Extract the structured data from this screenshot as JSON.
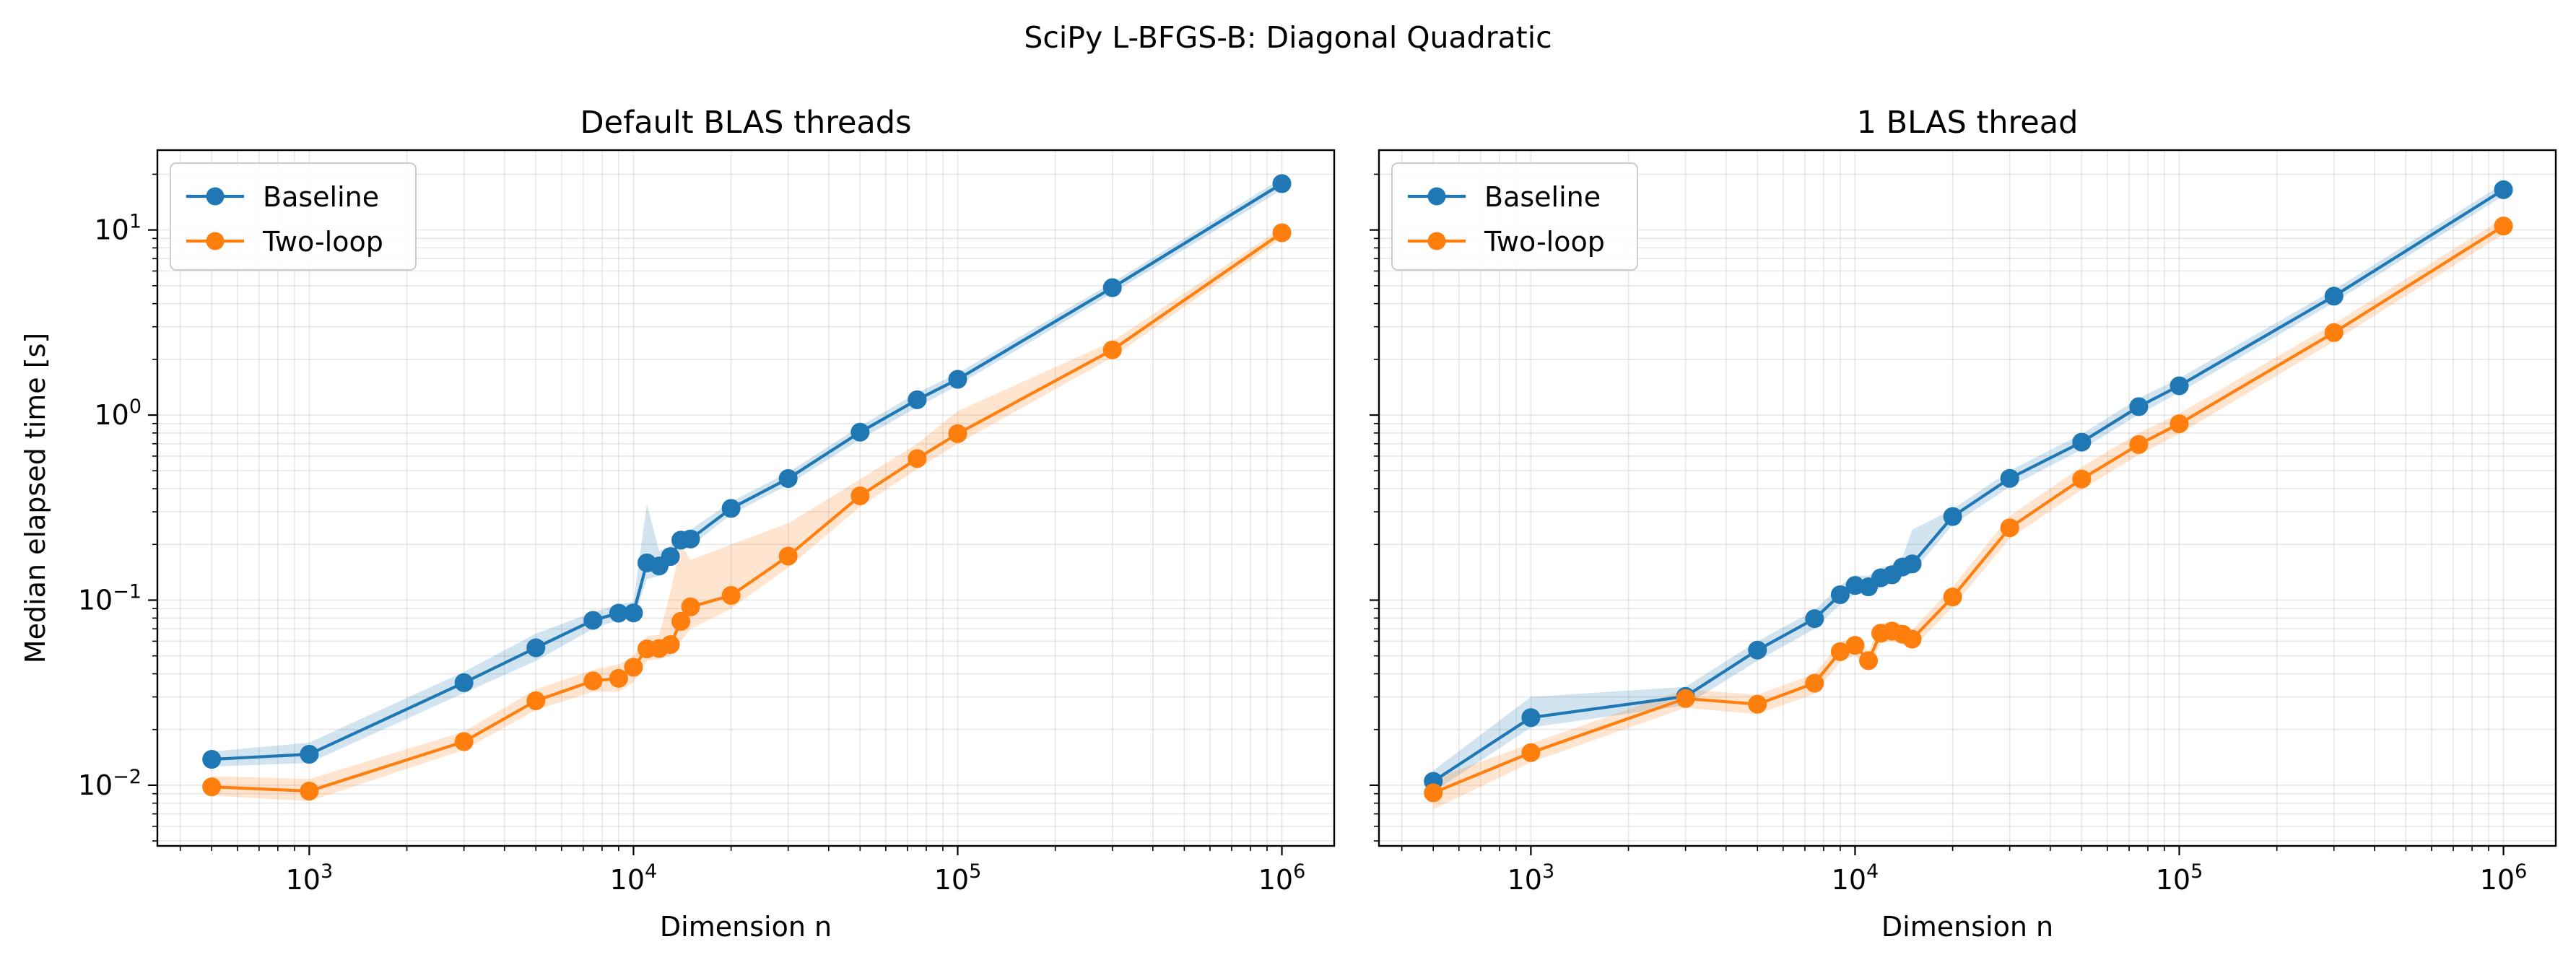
{
  "figure": {
    "title": "SciPy L-BFGS-B: Diagonal Quadratic"
  },
  "colors": {
    "baseline": "#1f77b4",
    "two_loop": "#ff7f0e",
    "grid": "#b0b0b0",
    "axes": "#000000"
  },
  "chart_data": [
    {
      "type": "line",
      "title": "Default BLAS threads",
      "xlabel": "Dimension n",
      "ylabel": "Median elapsed time [s]",
      "xscale": "log",
      "yscale": "log",
      "xlim": [
        340,
        1450000
      ],
      "ylim": [
        0.0047,
        27
      ],
      "grid": true,
      "legend_position": "upper-left",
      "x_ticks": [
        {
          "value": 1000,
          "base": "10",
          "exp": "3"
        },
        {
          "value": 10000,
          "base": "10",
          "exp": "4"
        },
        {
          "value": 100000,
          "base": "10",
          "exp": "5"
        },
        {
          "value": 1000000,
          "base": "10",
          "exp": "6"
        }
      ],
      "y_ticks": [
        {
          "value": 0.01,
          "base": "10",
          "exp": "−2"
        },
        {
          "value": 0.1,
          "base": "10",
          "exp": "−1"
        },
        {
          "value": 1,
          "base": "10",
          "exp": "0"
        },
        {
          "value": 10,
          "base": "10",
          "exp": "1"
        }
      ],
      "x": [
        500,
        1000,
        3000,
        5000,
        7500,
        9000,
        10000,
        11000,
        12000,
        13000,
        14000,
        15000,
        20000,
        30000,
        50000,
        75000,
        100000,
        300000,
        1000000
      ],
      "series": [
        {
          "name": "Baseline",
          "values": [
            0.0138,
            0.0147,
            0.0358,
            0.0553,
            0.0778,
            0.0851,
            0.0853,
            0.159,
            0.153,
            0.172,
            0.211,
            0.214,
            0.313,
            0.454,
            0.808,
            1.21,
            1.56,
            4.88,
            17.8
          ],
          "lower": [
            0.0126,
            0.0132,
            0.0315,
            0.047,
            0.07,
            0.078,
            0.079,
            0.13,
            0.135,
            0.155,
            0.19,
            0.195,
            0.29,
            0.42,
            0.74,
            1.1,
            1.45,
            4.55,
            16.5
          ],
          "upper": [
            0.0152,
            0.017,
            0.041,
            0.066,
            0.086,
            0.095,
            0.098,
            0.33,
            0.185,
            0.195,
            0.235,
            0.24,
            0.34,
            0.49,
            0.87,
            1.32,
            1.68,
            5.2,
            19.0
          ]
        },
        {
          "name": "Two-loop",
          "values": [
            0.0098,
            0.0093,
            0.0172,
            0.0286,
            0.0366,
            0.0378,
            0.0434,
            0.0545,
            0.0548,
            0.0575,
            0.0768,
            0.092,
            0.106,
            0.173,
            0.366,
            0.582,
            0.793,
            2.25,
            9.66
          ],
          "lower": [
            0.0088,
            0.0082,
            0.0155,
            0.0255,
            0.032,
            0.032,
            0.036,
            0.047,
            0.048,
            0.05,
            0.06,
            0.07,
            0.09,
            0.15,
            0.32,
            0.51,
            0.7,
            2.05,
            9.0
          ],
          "upper": [
            0.0112,
            0.0108,
            0.0195,
            0.033,
            0.042,
            0.045,
            0.05,
            0.064,
            0.065,
            0.11,
            0.2,
            0.165,
            0.2,
            0.26,
            0.45,
            0.7,
            1.05,
            2.5,
            10.3
          ]
        }
      ]
    },
    {
      "type": "line",
      "title": "1 BLAS thread",
      "xlabel": "Dimension n",
      "ylabel": "",
      "xscale": "log",
      "yscale": "log",
      "xlim": [
        340,
        1450000
      ],
      "ylim": [
        0.0047,
        27
      ],
      "grid": true,
      "legend_position": "upper-left",
      "x_ticks": [
        {
          "value": 1000,
          "base": "10",
          "exp": "3"
        },
        {
          "value": 10000,
          "base": "10",
          "exp": "4"
        },
        {
          "value": 100000,
          "base": "10",
          "exp": "5"
        },
        {
          "value": 1000000,
          "base": "10",
          "exp": "6"
        }
      ],
      "y_ticks": [
        {
          "value": 0.01,
          "base": "10",
          "exp": "−2"
        },
        {
          "value": 0.1,
          "base": "10",
          "exp": "−1"
        },
        {
          "value": 1,
          "base": "10",
          "exp": "0"
        },
        {
          "value": 10,
          "base": "10",
          "exp": "1"
        }
      ],
      "x": [
        500,
        1000,
        3000,
        5000,
        7500,
        9000,
        10000,
        11000,
        12000,
        13000,
        14000,
        15000,
        20000,
        30000,
        50000,
        75000,
        100000,
        300000,
        1000000
      ],
      "series": [
        {
          "name": "Baseline",
          "values": [
            0.0105,
            0.0232,
            0.0302,
            0.0537,
            0.0794,
            0.107,
            0.12,
            0.118,
            0.132,
            0.137,
            0.151,
            0.157,
            0.283,
            0.455,
            0.714,
            1.11,
            1.44,
            4.39,
            16.5
          ],
          "lower": [
            0.0092,
            0.0205,
            0.027,
            0.047,
            0.07,
            0.095,
            0.108,
            0.106,
            0.118,
            0.123,
            0.135,
            0.14,
            0.255,
            0.41,
            0.65,
            1.01,
            1.32,
            4.05,
            15.3
          ],
          "upper": [
            0.012,
            0.03,
            0.034,
            0.06,
            0.088,
            0.12,
            0.136,
            0.135,
            0.15,
            0.155,
            0.17,
            0.24,
            0.31,
            0.5,
            0.79,
            1.23,
            1.58,
            4.75,
            17.8
          ]
        },
        {
          "name": "Two-loop",
          "values": [
            0.0091,
            0.015,
            0.0294,
            0.0274,
            0.0356,
            0.0527,
            0.057,
            0.0471,
            0.0663,
            0.068,
            0.0655,
            0.0616,
            0.104,
            0.246,
            0.451,
            0.693,
            0.897,
            2.79,
            10.5
          ],
          "lower": [
            0.0074,
            0.0133,
            0.0262,
            0.0242,
            0.0312,
            0.0465,
            0.0505,
            0.0415,
            0.0585,
            0.06,
            0.058,
            0.0545,
            0.092,
            0.215,
            0.395,
            0.61,
            0.79,
            2.5,
            9.5
          ],
          "upper": [
            0.0108,
            0.0168,
            0.033,
            0.0308,
            0.04,
            0.059,
            0.064,
            0.053,
            0.0745,
            0.0765,
            0.0735,
            0.069,
            0.118,
            0.285,
            0.525,
            0.8,
            1.02,
            3.12,
            11.6
          ]
        }
      ]
    }
  ]
}
